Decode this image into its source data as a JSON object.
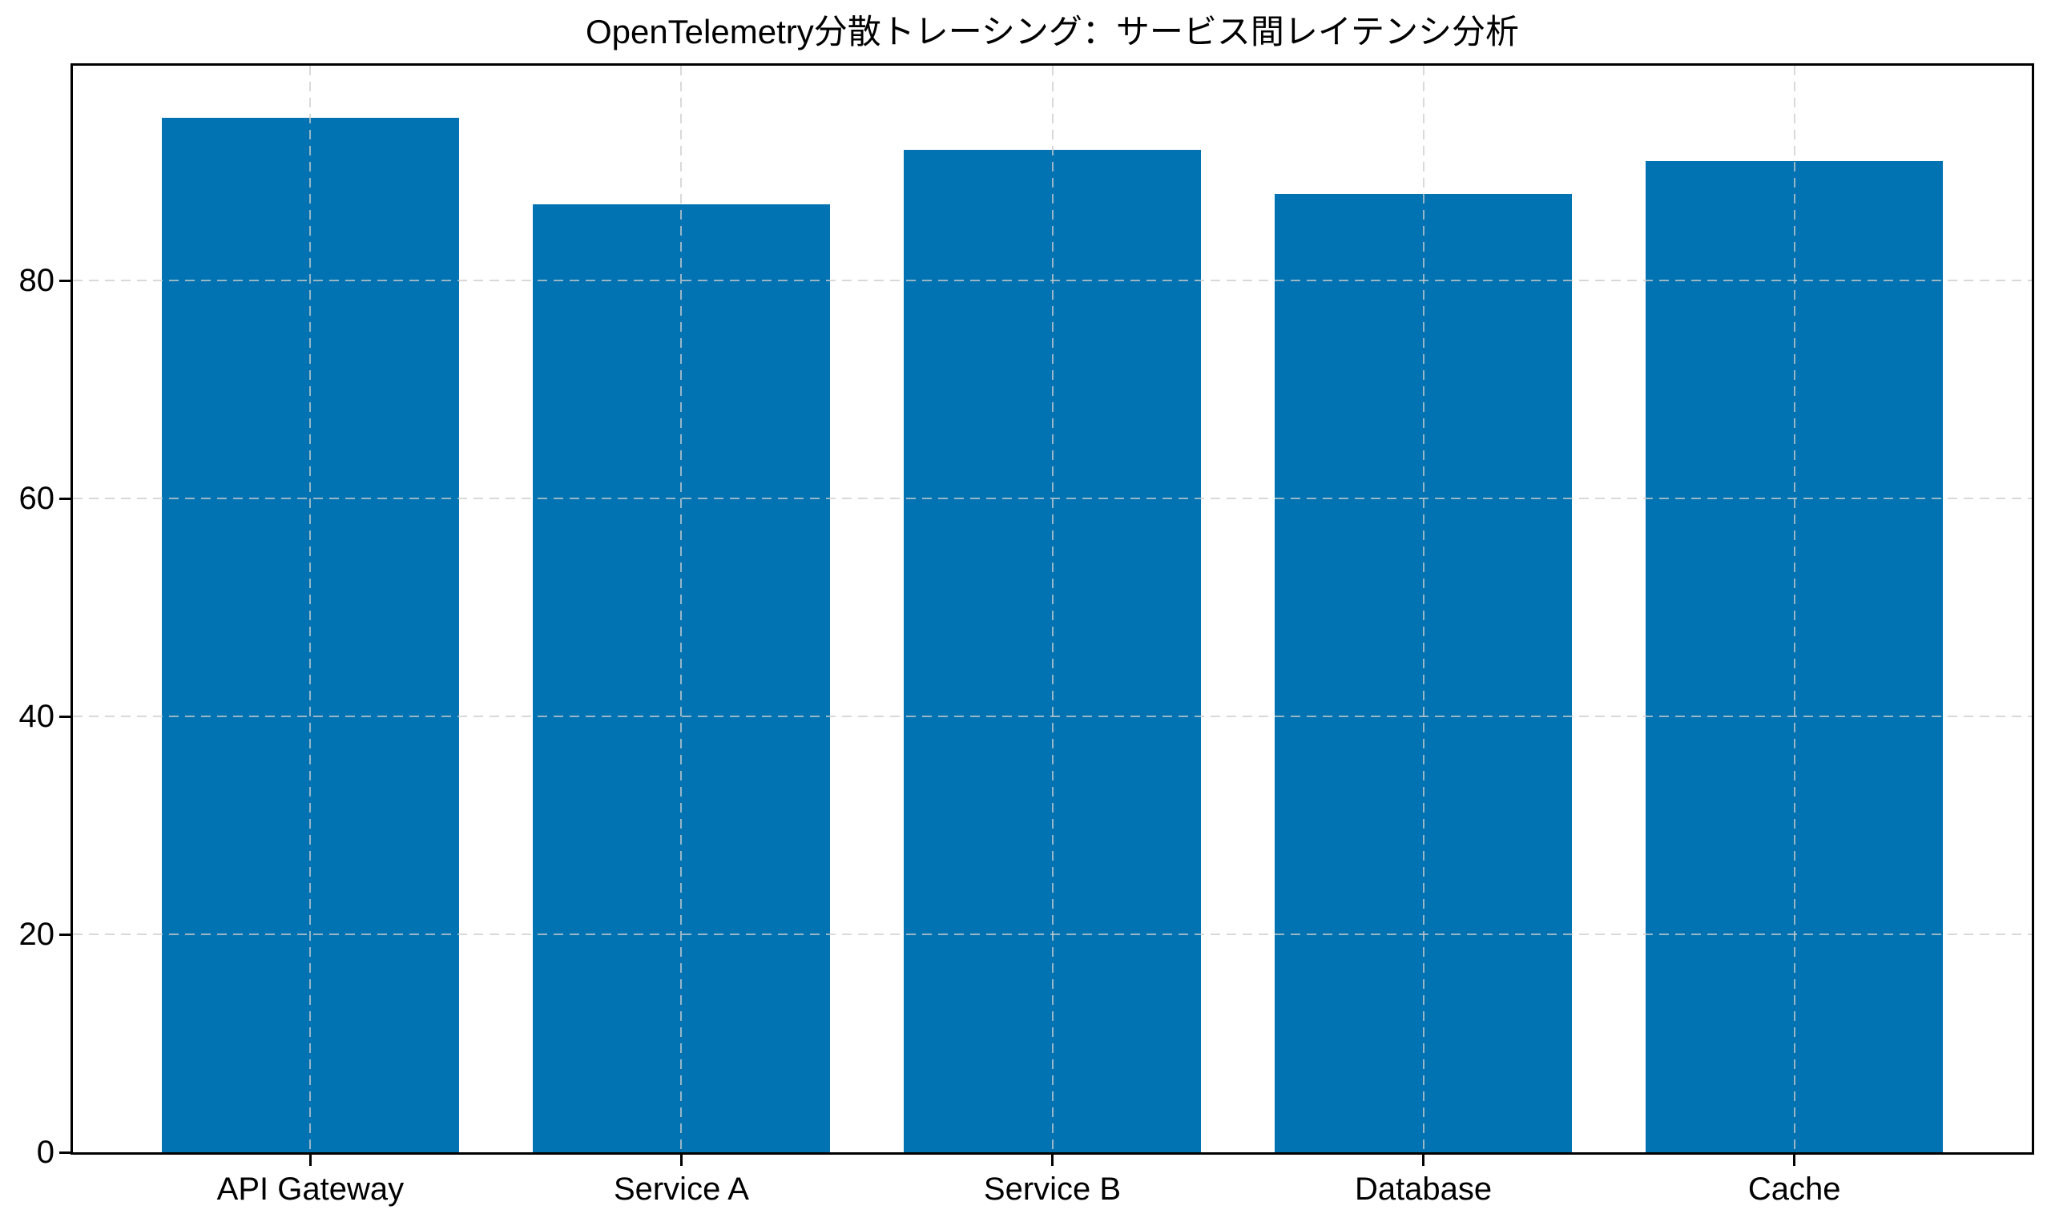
{
  "chart_data": {
    "type": "bar",
    "title": "OpenTelemetry分散トレーシング：サービス間レイテンシ分析",
    "categories": [
      "API Gateway",
      "Service A",
      "Service B",
      "Database",
      "Cache"
    ],
    "values": [
      95,
      87,
      92,
      88,
      91
    ],
    "xlabel": "",
    "ylabel": "",
    "yticks": [
      0,
      20,
      40,
      60,
      80
    ],
    "ylim": [
      0,
      99.75
    ],
    "xlim": [
      -0.64,
      4.64
    ],
    "bar_width": 0.8,
    "bar_color": "#0173b2",
    "grid": true,
    "grid_style": "dashed",
    "grid_color": "#cccccc",
    "grid_over_bars": true,
    "axis_color": "#000000",
    "background_color": "#ffffff",
    "legend_position": "none"
  }
}
